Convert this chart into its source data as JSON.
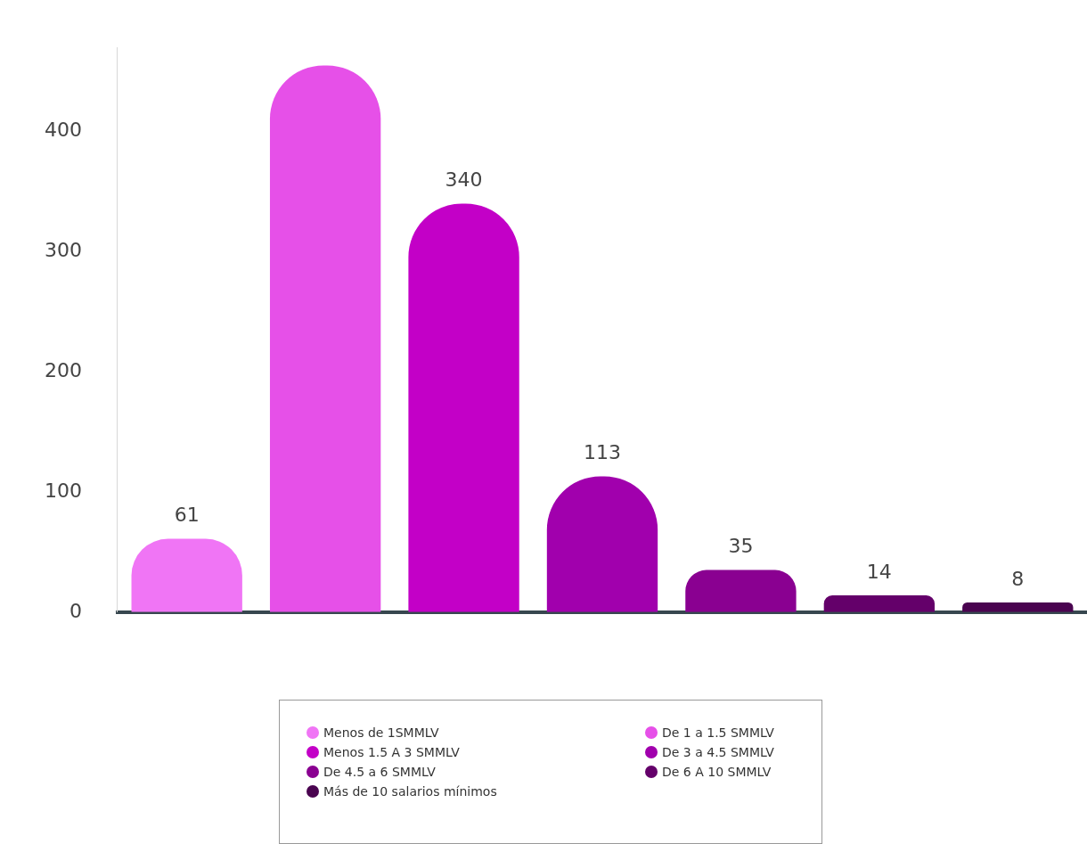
{
  "chart_data": {
    "type": "bar",
    "categories": [
      null,
      null,
      null,
      null,
      null,
      null,
      null
    ],
    "series": [
      {
        "name": "Menos de 1SMMLV",
        "color": "#f075f5",
        "values": [
          61,
          null,
          null,
          null,
          null,
          null,
          null
        ],
        "value_labels": [
          "61",
          null,
          null,
          null,
          null,
          null,
          null
        ]
      },
      {
        "name": "De 1 a 1.5 SMMLV",
        "color": "#e650e8",
        "values": [
          null,
          455,
          null,
          null,
          null,
          null,
          null
        ],
        "value_labels": [
          null,
          null,
          null,
          null,
          null,
          null,
          null
        ]
      },
      {
        "name": "Menos 1.5 A 3 SMMLV",
        "color": "#c300c7",
        "values": [
          null,
          null,
          340,
          null,
          null,
          null,
          null
        ],
        "value_labels": [
          null,
          null,
          "340",
          null,
          null,
          null,
          null
        ]
      },
      {
        "name": "De 3 a 4.5 SMMLV",
        "color": "#a100ad",
        "values": [
          null,
          null,
          null,
          113,
          null,
          null,
          null
        ],
        "value_labels": [
          null,
          null,
          null,
          "113",
          null,
          null,
          null
        ]
      },
      {
        "name": "De 4.5 a 6 SMMLV",
        "color": "#8a0091",
        "values": [
          null,
          null,
          null,
          null,
          35,
          null,
          null
        ],
        "value_labels": [
          null,
          null,
          null,
          null,
          "35",
          null,
          null
        ]
      },
      {
        "name": "De 6 A 10 SMMLV",
        "color": "#64006a",
        "values": [
          null,
          null,
          null,
          null,
          null,
          14,
          null
        ],
        "value_labels": [
          null,
          null,
          null,
          null,
          null,
          "14",
          null
        ]
      },
      {
        "name": "Más de 10 salarios mínimos",
        "color": "#4a0450",
        "values": [
          null,
          null,
          null,
          null,
          null,
          null,
          8
        ],
        "value_labels": [
          null,
          null,
          null,
          null,
          null,
          null,
          "8"
        ]
      }
    ],
    "ylim": [
      0,
      470
    ],
    "yticks": [
      0,
      100,
      200,
      300,
      400
    ],
    "tick_labels": "y",
    "legend": "bottom"
  }
}
